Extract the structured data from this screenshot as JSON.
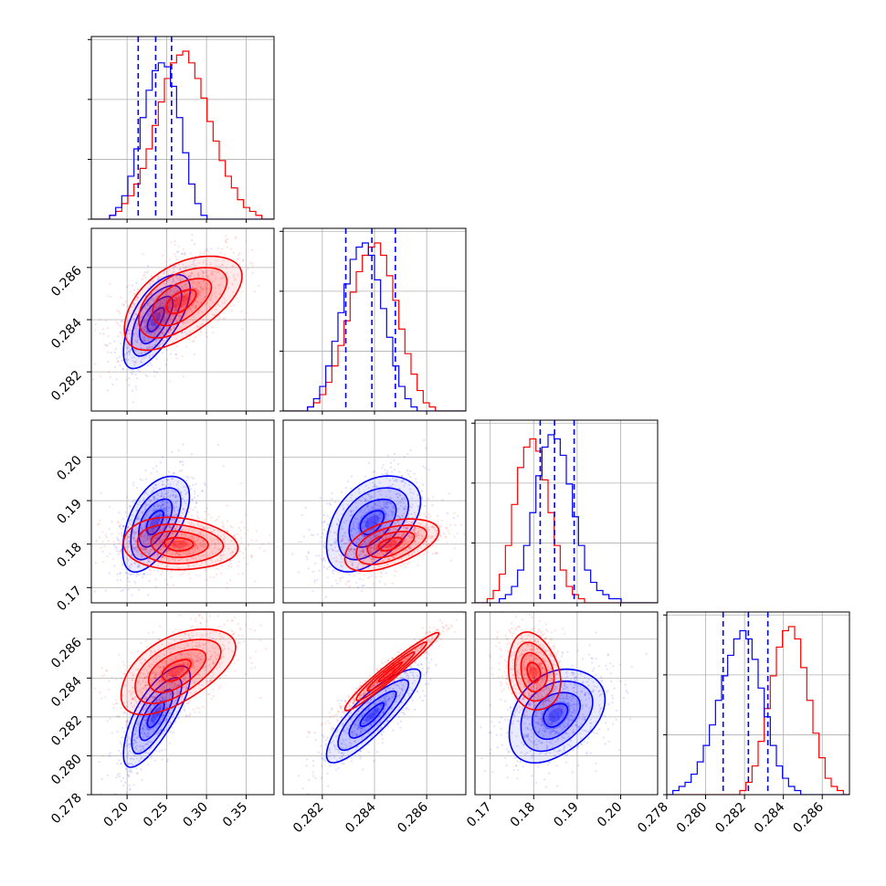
{
  "colors": {
    "red": "#ff0000",
    "blue": "#0000ff",
    "grid": "#b0b0b0"
  },
  "chart_data": {
    "type": "corner",
    "series": [
      {
        "color": "#ff0000"
      },
      {
        "color": "#0000ff"
      }
    ],
    "params": [
      {
        "range": [
          0.155,
          0.385
        ],
        "ticks": [
          "0.20",
          "0.25",
          "0.30",
          "0.35"
        ]
      },
      {
        "range": [
          0.2805,
          0.2875
        ],
        "ticks": [
          "0.282",
          "0.284",
          "0.286"
        ]
      },
      {
        "range": [
          0.1665,
          0.2085
        ],
        "ticks": [
          "0.17",
          "0.18",
          "0.19",
          "0.20"
        ]
      },
      {
        "range": [
          0.278,
          0.2874
        ],
        "ticks": [
          "0.278",
          "0.280",
          "0.282",
          "0.284",
          "0.286"
        ]
      }
    ],
    "quantile_lines": [
      [
        0.214,
        0.236,
        0.256
      ],
      [
        0.2829,
        0.2839,
        0.2848
      ],
      [
        0.1815,
        0.1848,
        0.1893
      ],
      [
        0.2809,
        0.2822,
        0.2832
      ]
    ],
    "histograms": [
      {
        "edges_range": [
          0.155,
          0.385
        ],
        "bins": 30,
        "red": [
          0,
          0,
          0,
          1,
          2,
          4,
          6,
          9,
          13,
          18,
          24,
          30,
          36,
          40,
          42,
          43,
          40,
          36,
          31,
          25,
          20,
          15,
          11,
          8,
          5,
          3,
          2,
          1,
          0,
          0
        ],
        "blue": [
          0,
          0,
          0,
          1,
          3,
          6,
          11,
          18,
          26,
          33,
          38,
          40,
          39,
          34,
          26,
          17,
          9,
          4,
          1,
          0,
          0,
          0,
          0,
          0,
          0,
          0,
          0,
          0,
          0,
          0
        ]
      },
      {
        "edges_range": [
          0.2805,
          0.2875
        ],
        "bins": 30,
        "red": [
          0,
          0,
          0,
          0,
          1,
          2,
          4,
          7,
          11,
          16,
          22,
          29,
          34,
          38,
          40,
          41,
          38,
          33,
          27,
          20,
          14,
          9,
          5,
          2,
          1,
          0,
          0,
          0,
          0,
          0
        ],
        "blue": [
          0,
          0,
          0,
          0,
          1,
          3,
          6,
          11,
          17,
          24,
          31,
          37,
          40,
          41,
          38,
          32,
          25,
          18,
          11,
          6,
          3,
          1,
          0,
          0,
          0,
          0,
          0,
          0,
          0,
          0
        ]
      },
      {
        "edges_range": [
          0.1665,
          0.2085
        ],
        "bins": 30,
        "red": [
          0,
          0,
          1,
          3,
          7,
          14,
          24,
          33,
          38,
          40,
          37,
          30,
          22,
          14,
          8,
          4,
          2,
          1,
          0,
          0,
          0,
          0,
          0,
          0,
          0,
          0,
          0,
          0,
          0,
          0
        ],
        "blue": [
          0,
          0,
          0,
          0,
          1,
          2,
          4,
          8,
          14,
          22,
          31,
          38,
          41,
          40,
          36,
          29,
          21,
          14,
          8,
          5,
          3,
          2,
          1,
          1,
          0,
          0,
          0,
          0,
          0,
          0
        ]
      },
      {
        "edges_range": [
          0.278,
          0.2874
        ],
        "bins": 30,
        "red": [
          0,
          0,
          0,
          0,
          0,
          0,
          0,
          0,
          0,
          0,
          0,
          0,
          1,
          3,
          7,
          13,
          21,
          29,
          36,
          40,
          41,
          38,
          31,
          23,
          15,
          9,
          4,
          2,
          1,
          0
        ],
        "blue": [
          0,
          1,
          2,
          3,
          5,
          8,
          12,
          17,
          23,
          29,
          34,
          38,
          40,
          38,
          33,
          26,
          19,
          12,
          7,
          4,
          2,
          1,
          0,
          0,
          0,
          0,
          0,
          0,
          0,
          0
        ]
      }
    ],
    "scatter": [
      {
        "x": 0,
        "y": 1,
        "red": {
          "cx": 0.268,
          "cy": 0.2847,
          "sx": 0.037,
          "sy": 0.0009,
          "rho": 0.55
        },
        "blue": {
          "cx": 0.236,
          "cy": 0.284,
          "sx": 0.021,
          "sy": 0.0009,
          "rho": 0.65
        }
      },
      {
        "x": 0,
        "y": 2,
        "red": {
          "cx": 0.265,
          "cy": 0.18,
          "sx": 0.036,
          "sy": 0.003,
          "rho": -0.1
        },
        "blue": {
          "cx": 0.235,
          "cy": 0.185,
          "sx": 0.021,
          "sy": 0.0055,
          "rho": 0.55
        }
      },
      {
        "x": 1,
        "y": 2,
        "red": {
          "cx": 0.2846,
          "cy": 0.18,
          "sx": 0.0009,
          "sy": 0.003,
          "rho": 0.5
        },
        "blue": {
          "cx": 0.2839,
          "cy": 0.185,
          "sx": 0.0009,
          "sy": 0.0055,
          "rho": 0.45
        }
      },
      {
        "x": 0,
        "y": 3,
        "red": {
          "cx": 0.262,
          "cy": 0.2844,
          "sx": 0.036,
          "sy": 0.0011,
          "rho": 0.55
        },
        "blue": {
          "cx": 0.236,
          "cy": 0.2821,
          "sx": 0.021,
          "sy": 0.0013,
          "rho": 0.75
        }
      },
      {
        "x": 1,
        "y": 3,
        "red": {
          "cx": 0.2846,
          "cy": 0.2843,
          "sx": 0.0009,
          "sy": 0.001,
          "rho": 0.97
        },
        "blue": {
          "cx": 0.2839,
          "cy": 0.2821,
          "sx": 0.0009,
          "sy": 0.0012,
          "rho": 0.85
        }
      },
      {
        "x": 2,
        "y": 3,
        "red": {
          "cx": 0.18,
          "cy": 0.2843,
          "sx": 0.003,
          "sy": 0.001,
          "rho": -0.2
        },
        "blue": {
          "cx": 0.185,
          "cy": 0.2821,
          "sx": 0.0055,
          "sy": 0.0012,
          "rho": 0.35
        }
      }
    ],
    "grid": true
  }
}
